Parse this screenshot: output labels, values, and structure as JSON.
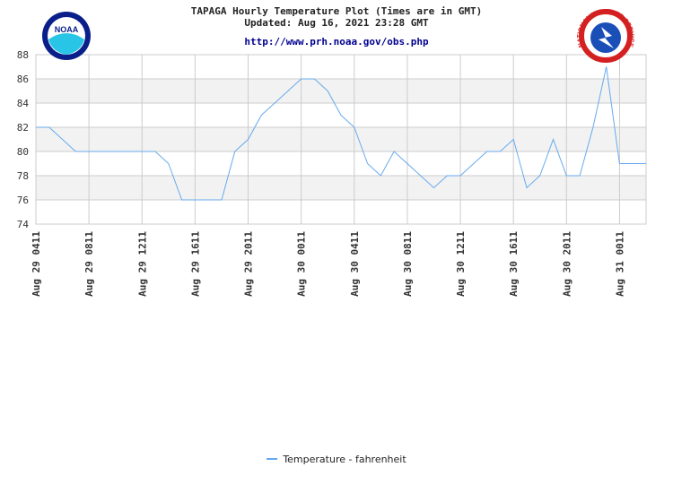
{
  "header": {
    "title": "TAPAGA Hourly Temperature Plot (Times are in GMT)",
    "updated": "Updated: Aug 16, 2021 23:28 GMT",
    "url": "http://www.prh.noaa.gov/obs.php"
  },
  "logos": {
    "left": {
      "name": "noaa-logo",
      "text": "NOAA",
      "colors": {
        "outer": "#0a1f8a",
        "inner": "#29c5e6"
      }
    },
    "right": {
      "name": "national-weather-service-logo",
      "text": "NATIONAL WEATHER SERVICE",
      "colors": {
        "ring": "#d42020",
        "inner": "#1a4fb8"
      }
    }
  },
  "colors": {
    "line": "#66aaee",
    "band": "#f2f2f2",
    "grid": "#cccccc",
    "axis_text": "#333333"
  },
  "chart_data": {
    "type": "line",
    "ylim": [
      74,
      88
    ],
    "yticks": [
      74,
      76,
      78,
      80,
      82,
      84,
      86,
      88
    ],
    "grid": true,
    "legend_position": "bottom-center",
    "x_tick_labels": [
      "Aug 29 0411",
      "Aug 29 0811",
      "Aug 29 1211",
      "Aug 29 1611",
      "Aug 29 2011",
      "Aug 30 0011",
      "Aug 30 0411",
      "Aug 30 0811",
      "Aug 30 1211",
      "Aug 30 1611",
      "Aug 30 2011",
      "Aug 31 0011"
    ],
    "series": [
      {
        "name": "Temperature - fahrenheit",
        "x": [
          "Aug 29 0411",
          "Aug 29 0511",
          "Aug 29 0611",
          "Aug 29 0711",
          "Aug 29 0811",
          "Aug 29 0911",
          "Aug 29 1011",
          "Aug 29 1111",
          "Aug 29 1211",
          "Aug 29 1311",
          "Aug 29 1411",
          "Aug 29 1511",
          "Aug 29 1611",
          "Aug 29 1711",
          "Aug 29 1811",
          "Aug 29 1911",
          "Aug 29 2011",
          "Aug 29 2111",
          "Aug 29 2211",
          "Aug 29 2311",
          "Aug 30 0011",
          "Aug 30 0111",
          "Aug 30 0211",
          "Aug 30 0311",
          "Aug 30 0411",
          "Aug 30 0511",
          "Aug 30 0611",
          "Aug 30 0711",
          "Aug 30 0811",
          "Aug 30 0911",
          "Aug 30 1011",
          "Aug 30 1111",
          "Aug 30 1211",
          "Aug 30 1311",
          "Aug 30 1411",
          "Aug 30 1511",
          "Aug 30 1611",
          "Aug 30 1711",
          "Aug 30 1811",
          "Aug 30 1911",
          "Aug 30 2011",
          "Aug 30 2111",
          "Aug 30 2211",
          "Aug 30 2311",
          "Aug 31 0011",
          "Aug 31 0111",
          "Aug 31 0211"
        ],
        "values": [
          82,
          82,
          81,
          80,
          80,
          80,
          80,
          80,
          80,
          80,
          79,
          76,
          76,
          76,
          76,
          80,
          81,
          83,
          84,
          85,
          86,
          86,
          85,
          83,
          82,
          79,
          78,
          80,
          79,
          78,
          77,
          78,
          78,
          79,
          80,
          80,
          81,
          77,
          78,
          81,
          78,
          78,
          82,
          87,
          79,
          79,
          79
        ]
      }
    ]
  }
}
